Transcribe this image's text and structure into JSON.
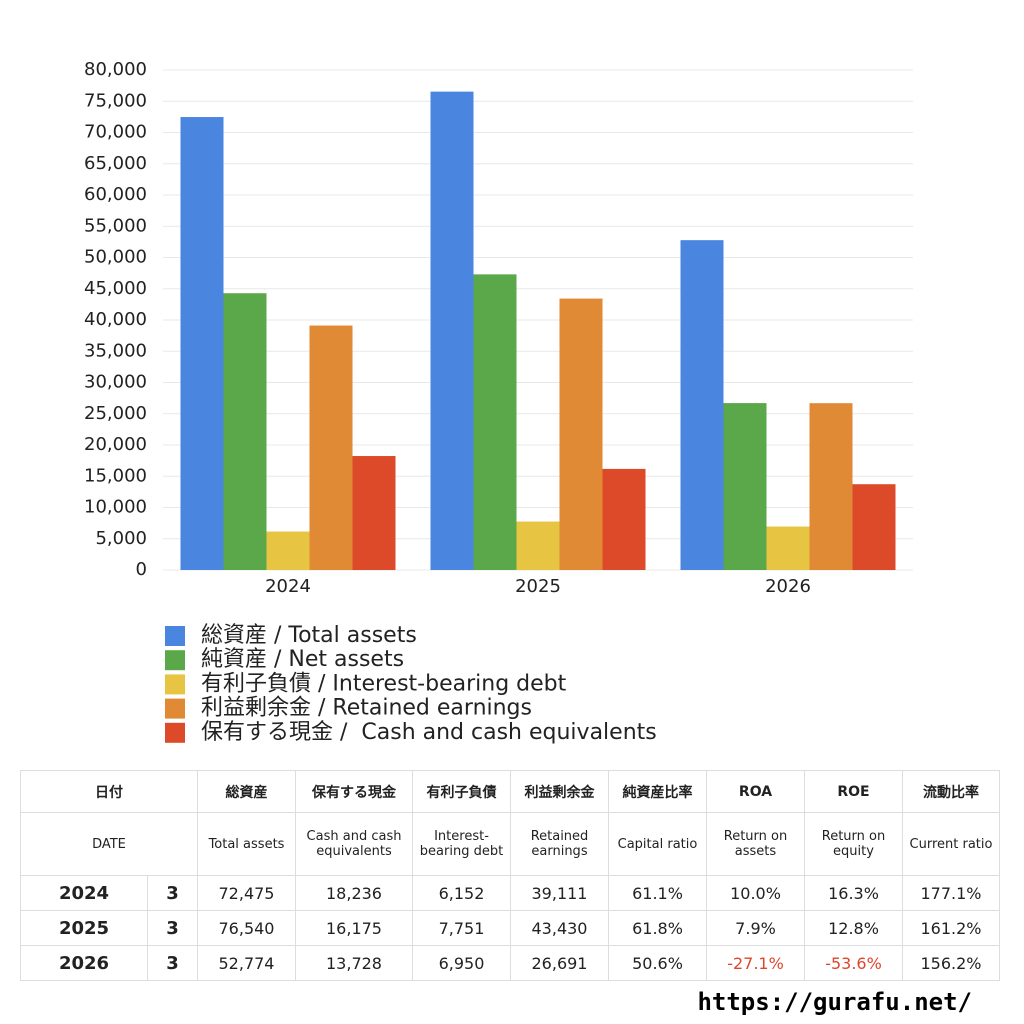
{
  "chart_data": {
    "type": "bar",
    "categories": [
      "2024",
      "2025",
      "2026"
    ],
    "series": [
      {
        "name": "総資産 / Total assets",
        "color": "#4a86e0",
        "values": [
          72475,
          76540,
          52774
        ]
      },
      {
        "name": "純資産 / Net assets",
        "color": "#5aa84a",
        "values": [
          44282,
          47302,
          26704
        ]
      },
      {
        "name": "有利子負債 / Interest-bearing debt",
        "color": "#e8c443",
        "values": [
          6152,
          7751,
          6950
        ]
      },
      {
        "name": "利益剰余金 / Retained earnings",
        "color": "#e08a35",
        "values": [
          39111,
          43430,
          26691
        ]
      },
      {
        "name": "保有する現金 /  Cash and cash equivalents",
        "color": "#dc4a2a",
        "values": [
          18236,
          16175,
          13728
        ]
      }
    ],
    "ylim": [
      0,
      80000
    ],
    "yticks": [
      0,
      {
        "value": 5000,
        "label": "5,000"
      },
      {
        "value": 10000,
        "label": "10,000"
      },
      {
        "value": 15000,
        "label": "15,000"
      },
      {
        "value": 20000,
        "label": "20,000"
      },
      {
        "value": 25000,
        "label": "25,000"
      },
      {
        "value": 30000,
        "label": "30,000"
      },
      {
        "value": 35000,
        "label": "35,000"
      },
      {
        "value": 40000,
        "label": "40,000"
      },
      {
        "value": 45000,
        "label": "45,000"
      },
      {
        "value": 50000,
        "label": "50,000"
      },
      {
        "value": 55000,
        "label": "55,000"
      },
      {
        "value": 60000,
        "label": "60,000"
      },
      {
        "value": 65000,
        "label": "65,000"
      },
      {
        "value": 70000,
        "label": "70,000"
      },
      {
        "value": 75000,
        "label": "75,000"
      },
      {
        "value": 80000,
        "label": "80,000"
      }
    ],
    "grid": true,
    "legend": "bottom"
  },
  "table": {
    "header_ja": [
      "日付",
      "総資産",
      "保有する現金",
      "有利子負債",
      "利益剰余金",
      "純資産比率",
      "ROA",
      "ROE",
      "流動比率"
    ],
    "header_en": [
      "DATE",
      "Total assets",
      "Cash and cash equivalents",
      "Interest-bearing debt",
      "Retained earnings",
      "Capital ratio",
      "Return on assets",
      "Return on equity",
      "Current ratio"
    ],
    "rows": [
      [
        "2024",
        "3",
        "72,475",
        "18,236",
        "6,152",
        "39,111",
        "61.1%",
        "10.0%",
        "16.3%",
        "177.1%"
      ],
      [
        "2025",
        "3",
        "76,540",
        "16,175",
        "7,751",
        "43,430",
        "61.8%",
        "7.9%",
        "12.8%",
        "161.2%"
      ],
      [
        "2026",
        "3",
        "52,774",
        "13,728",
        "6,950",
        "26,691",
        "50.6%",
        "-27.1%",
        "-53.6%",
        "156.2%"
      ]
    ]
  },
  "footer": "https://gurafu.net/"
}
